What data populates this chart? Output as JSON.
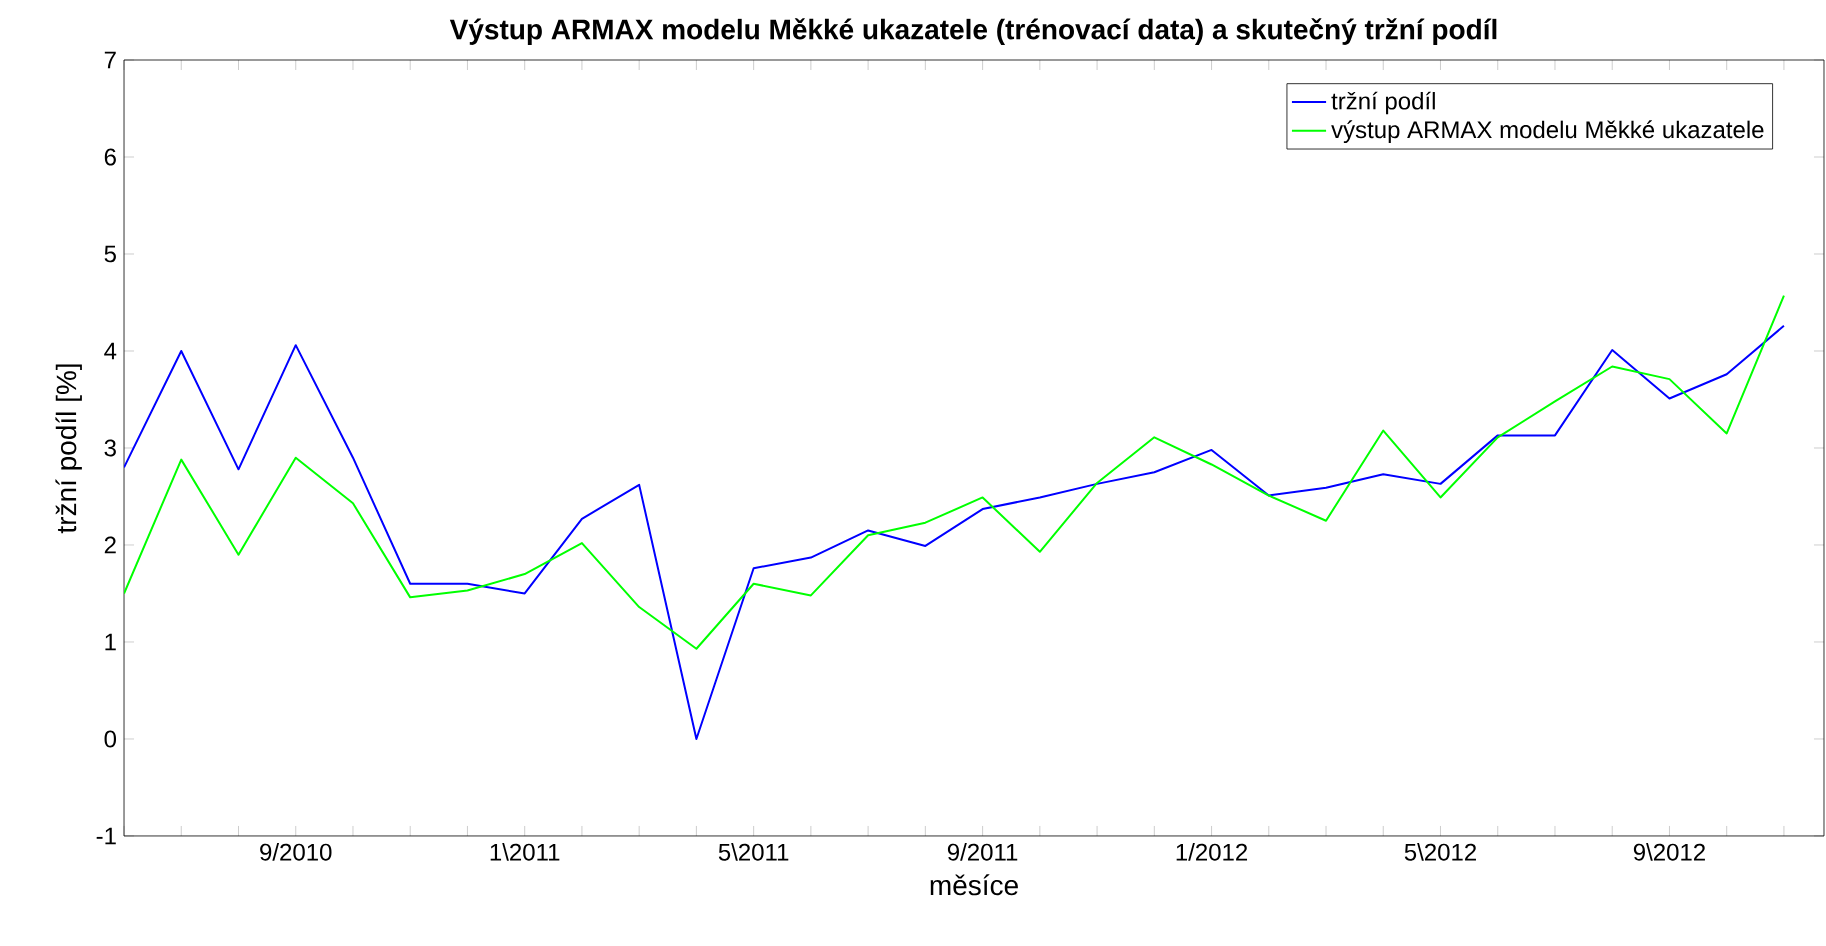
{
  "chart_data": {
    "type": "line",
    "title": "Výstup ARMAX modelu Měkké ukazatele (trénovací data) a skutečný tržní podíl",
    "xlabel": "měsíce",
    "ylabel": "tržní podíl [%]",
    "categories": [
      null,
      null,
      null,
      "9/2010",
      null,
      null,
      null,
      "1\\2011",
      null,
      null,
      null,
      "5\\2011",
      null,
      null,
      null,
      "9/2011",
      null,
      null,
      null,
      "1/2012",
      null,
      null,
      null,
      "5\\2012",
      null,
      null,
      null,
      "9\\2012",
      null,
      null
    ],
    "series": [
      {
        "name": "tržní podíl",
        "color": "#0000ff",
        "values": [
          2.8,
          4.0,
          2.78,
          4.06,
          2.9,
          1.6,
          1.6,
          1.5,
          2.27,
          2.62,
          0.0,
          1.76,
          1.87,
          2.15,
          1.99,
          2.37,
          2.49,
          2.63,
          2.75,
          2.98,
          2.51,
          2.59,
          2.73,
          2.63,
          3.13,
          3.13,
          4.01,
          3.51,
          3.76,
          4.26
        ]
      },
      {
        "name": "výstup ARMAX modelu Měkké ukazatele",
        "color": "#00ff00",
        "values": [
          1.5,
          2.88,
          1.9,
          2.9,
          2.43,
          1.46,
          1.53,
          1.7,
          2.02,
          1.36,
          0.93,
          1.6,
          1.48,
          2.1,
          2.23,
          2.49,
          1.93,
          2.64,
          3.11,
          2.83,
          2.51,
          2.25,
          3.18,
          2.49,
          3.11,
          3.48,
          3.84,
          3.71,
          3.15,
          4.57
        ]
      }
    ],
    "ylim": [
      -1,
      7
    ],
    "yticks": [
      -1,
      0,
      1,
      2,
      3,
      4,
      5,
      6,
      7
    ],
    "legend": "top right",
    "grid": false
  }
}
